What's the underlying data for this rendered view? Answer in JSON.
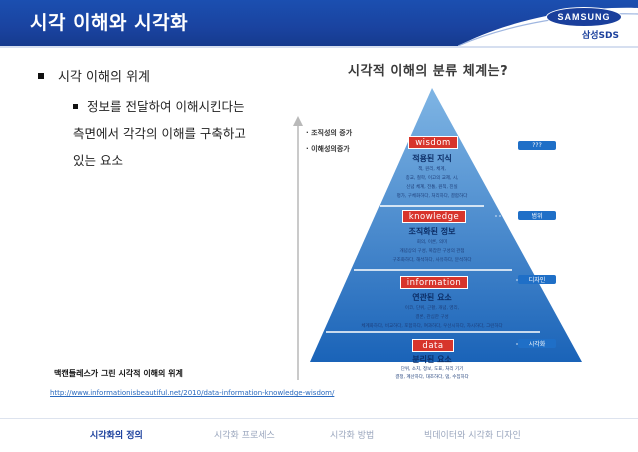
{
  "header": {
    "title": "시각 이해와 시각화",
    "logo_text": "SAMSUNG",
    "logo_sub": "삼성SDS"
  },
  "content": {
    "bullet_level1": "시각 이해의 위계",
    "bullet_level2_lines": [
      "정보를 전달하여 이해시킨다는",
      "측면에서 각각의 이해를 구축하고",
      "있는 요소"
    ]
  },
  "figure": {
    "title": "시각적 이해의 분류 체계는?",
    "legend": [
      "· 조직성의 증가",
      "· 이해성의증가"
    ],
    "layers": [
      {
        "tag": "wisdom",
        "heading": "적용된 지식",
        "lines": [
          "책, 원리, 체계,",
          "종교, 철학, 이고의 교제, 시,",
          "신념 체계, 전통, 원칙, 진실",
          "평가, 구체화하다, 처리하다, 결합하다"
        ],
        "pill": "???"
      },
      {
        "tag": "knowledge",
        "heading": "조직화된 정보",
        "lines": [
          "회의, 이론, 의미",
          "개념상의 구성, 복잡한 구성의 관점",
          "구조화하다, 해석하다, 사유하다, 분석하다"
        ],
        "pill": "범위"
      },
      {
        "tag": "information",
        "heading": "연관된 요소",
        "lines": [
          "이코, 단위, 근황, 개념, 영리,",
          "결론, 관심한 구성",
          "체계화하다, 비교하다, 포함하다, 여과하다, 우선시하다, 자시하다, 그런하다"
        ],
        "pill": "디자인"
      },
      {
        "tag": "data",
        "heading": "분리된 요소",
        "lines": [
          "단위, 소치, 정보, 도표, 처리 기기",
          "결정, 계산하다, 대조하다, 댐, 수집하다"
        ],
        "pill": "시각화"
      }
    ],
    "colors": {
      "pyramid_top": "#6fa9dd",
      "pyramid_bottom": "#1a63b8",
      "tag_red": "#d7352c",
      "pill_blue": "#1f6fc7"
    }
  },
  "source": {
    "caption": "맥캔들레스가 그린 시각적 이해의 위계",
    "url": "http://www.informationisbeautiful.net/2010/data-information-knowledge-wisdom/"
  },
  "footer": {
    "items": [
      "시각화의 정의",
      "시각화 프로세스",
      "시각화 방법",
      "빅데이터와 시각화 디자인"
    ],
    "active_index": 0
  }
}
